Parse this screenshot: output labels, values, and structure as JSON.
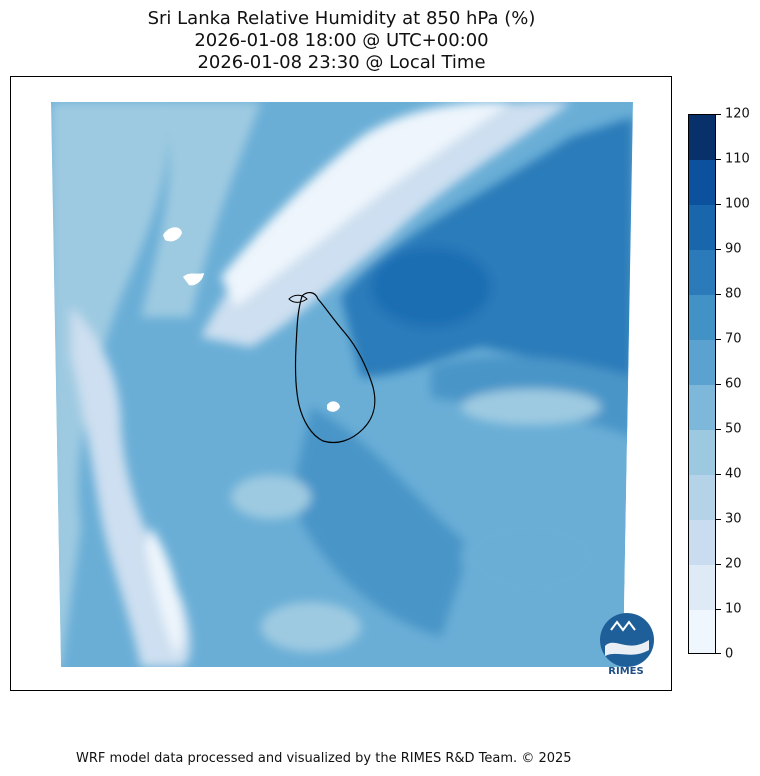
{
  "title": {
    "line1": "Sri Lanka Relative Humidity at 850 hPa (%)",
    "line2": "2026-01-08 18:00 @ UTC+00:00",
    "line3": "2026-01-08 23:30 @ Local Time"
  },
  "colorbar": {
    "min": 0,
    "max": 120,
    "ticks": [
      "0",
      "10",
      "20",
      "30",
      "40",
      "50",
      "60",
      "70",
      "80",
      "90",
      "100",
      "110",
      "120"
    ],
    "colors": [
      "#f0f6fd",
      "#deebf7",
      "#cadcef",
      "#b4d3e8",
      "#9dc9e0",
      "#7db8da",
      "#5ba2d1",
      "#4292c6",
      "#2b7bba",
      "#1966ad",
      "#0b519e",
      "#08306b"
    ]
  },
  "map": {
    "region": "Sri Lanka",
    "field_colors": {
      "dry": "#eef5fc",
      "low": "#cddff0",
      "mid": "#9ecae1",
      "moist": "#6aaed6",
      "wet": "#4a95c8",
      "very_wet": "#2c7cba",
      "saturated": "#1f6eb3"
    }
  },
  "logo": {
    "text": "RIMES"
  },
  "footer": "WRF model data processed and visualized by the RIMES R&D Team. © 2025"
}
